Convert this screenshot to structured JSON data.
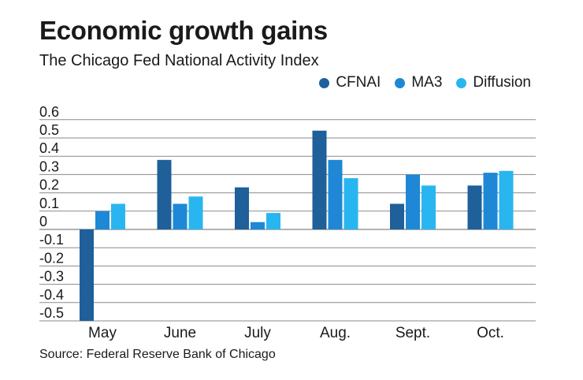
{
  "title": "Economic growth gains",
  "subtitle": "The Chicago Fed National Activity Index",
  "source": "Source: Federal Reserve Bank of Chicago",
  "chart_data": {
    "type": "bar",
    "categories": [
      "May",
      "June",
      "July",
      "Aug.",
      "Sept.",
      "Oct."
    ],
    "series": [
      {
        "name": "CFNAI",
        "color": "#1f5f9a",
        "values": [
          -0.5,
          0.38,
          0.23,
          0.54,
          0.14,
          0.24
        ]
      },
      {
        "name": "MA3",
        "color": "#1e88d6",
        "values": [
          0.1,
          0.14,
          0.04,
          0.38,
          0.3,
          0.31
        ]
      },
      {
        "name": "Diffusion",
        "color": "#29b6f0",
        "values": [
          0.14,
          0.18,
          0.09,
          0.28,
          0.24,
          0.32
        ]
      }
    ],
    "yticks": [
      "0.6",
      "0.5",
      "0.4",
      "0.3",
      "0.2",
      "0.1",
      "0",
      "-0.1",
      "-0.2",
      "-0.3",
      "-0.4",
      "-0.5"
    ],
    "ytick_values": [
      0.6,
      0.5,
      0.4,
      0.3,
      0.2,
      0.1,
      0,
      -0.1,
      -0.2,
      -0.3,
      -0.4,
      -0.5
    ],
    "ylim": [
      -0.5,
      0.6
    ],
    "grid": true,
    "legend": "top-right"
  }
}
